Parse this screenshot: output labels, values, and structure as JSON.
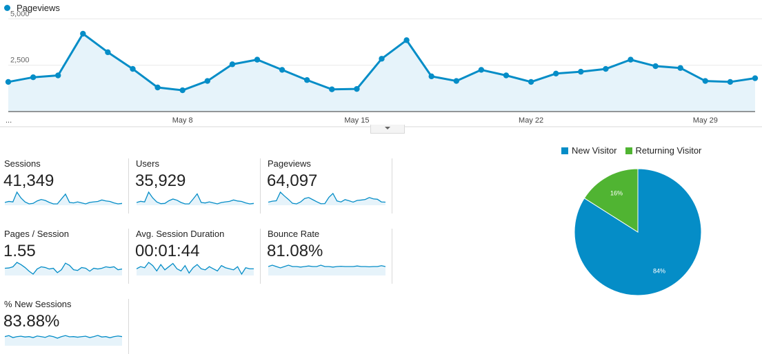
{
  "chart_data": [
    {
      "type": "area",
      "series": [
        {
          "name": "Pageviews",
          "values": [
            1600,
            1850,
            1950,
            4200,
            3200,
            2300,
            1300,
            1150,
            1650,
            2550,
            2800,
            2250,
            1700,
            1200,
            1220,
            2850,
            3850,
            1900,
            1650,
            2250,
            1950,
            1600,
            2050,
            2150,
            2300,
            2800,
            2450,
            2350,
            1650,
            1600,
            1800
          ]
        }
      ],
      "ylim": [
        0,
        5200
      ],
      "y_ticks": [
        "5,000",
        "2,500"
      ],
      "x_tick_labels": [
        "...",
        "May 8",
        "May 15",
        "May 22",
        "May 29"
      ],
      "color": "#058dc7",
      "fill": "#e6f3fa"
    },
    {
      "type": "pie",
      "series": [
        {
          "name": "New Visitor",
          "value": 84,
          "label": "84%",
          "color": "#058dc7"
        },
        {
          "name": "Returning Visitor",
          "value": 16,
          "label": "16%",
          "color": "#50b432"
        }
      ]
    }
  ],
  "main_legend": {
    "label": "Pageviews",
    "color": "#058dc7"
  },
  "metrics": [
    {
      "label": "Sessions",
      "value": "41,349",
      "spark": [
        1150,
        1250,
        1200,
        2200,
        1600,
        1200,
        1000,
        1050,
        1300,
        1450,
        1350,
        1150,
        1000,
        1000,
        1500,
        2000,
        1150,
        1100,
        1200,
        1100,
        1000,
        1150,
        1200,
        1250,
        1400,
        1300,
        1250,
        1100,
        1000,
        1050
      ]
    },
    {
      "label": "Users",
      "value": "35,929",
      "spark": [
        1000,
        1100,
        1050,
        1900,
        1400,
        1050,
        900,
        920,
        1150,
        1300,
        1200,
        1000,
        880,
        880,
        1300,
        1750,
        1000,
        960,
        1050,
        960,
        880,
        1000,
        1050,
        1100,
        1220,
        1130,
        1090,
        960,
        880,
        920
      ]
    },
    {
      "label": "Pageviews",
      "value": "64,097",
      "spark": [
        1600,
        1850,
        1950,
        4200,
        3200,
        2300,
        1300,
        1150,
        1650,
        2550,
        2800,
        2250,
        1700,
        1200,
        1220,
        2850,
        3850,
        1900,
        1650,
        2250,
        1950,
        1600,
        2050,
        2150,
        2300,
        2800,
        2450,
        2350,
        1650,
        1600
      ]
    },
    {
      "label": "Pages / Session",
      "value": "1.55",
      "spark": [
        1.5,
        1.52,
        1.6,
        1.9,
        1.75,
        1.55,
        1.3,
        1.1,
        1.45,
        1.6,
        1.55,
        1.45,
        1.5,
        1.2,
        1.4,
        1.85,
        1.7,
        1.4,
        1.35,
        1.55,
        1.5,
        1.3,
        1.5,
        1.45,
        1.5,
        1.6,
        1.55,
        1.6,
        1.4,
        1.45
      ]
    },
    {
      "label": "Avg. Session Duration",
      "value": "00:01:44",
      "spark": [
        100,
        110,
        105,
        130,
        115,
        90,
        120,
        95,
        110,
        125,
        100,
        90,
        115,
        80,
        105,
        120,
        100,
        95,
        110,
        100,
        90,
        115,
        105,
        100,
        95,
        110,
        75,
        105,
        100,
        100
      ]
    },
    {
      "label": "Bounce Rate",
      "value": "81.08%",
      "spark": [
        81,
        81.5,
        81,
        80.5,
        81,
        81.5,
        81,
        81,
        80.8,
        81,
        81.2,
        81,
        81,
        81.5,
        81,
        81,
        80.8,
        81,
        81.1,
        81,
        81,
        81,
        81.2,
        81,
        81,
        80.9,
        81,
        81,
        81.3,
        81
      ]
    },
    {
      "label": "% New Sessions",
      "value": "83.88%",
      "spark": [
        84,
        84.5,
        83.5,
        84,
        84.2,
        83.8,
        84,
        83.5,
        84.3,
        84,
        83.6,
        84.4,
        84,
        83.2,
        84,
        84.5,
        83.9,
        84,
        83.7,
        84,
        84.2,
        83.5,
        84,
        84.6,
        83.8,
        84,
        83.4,
        84,
        84.3,
        84
      ]
    }
  ]
}
